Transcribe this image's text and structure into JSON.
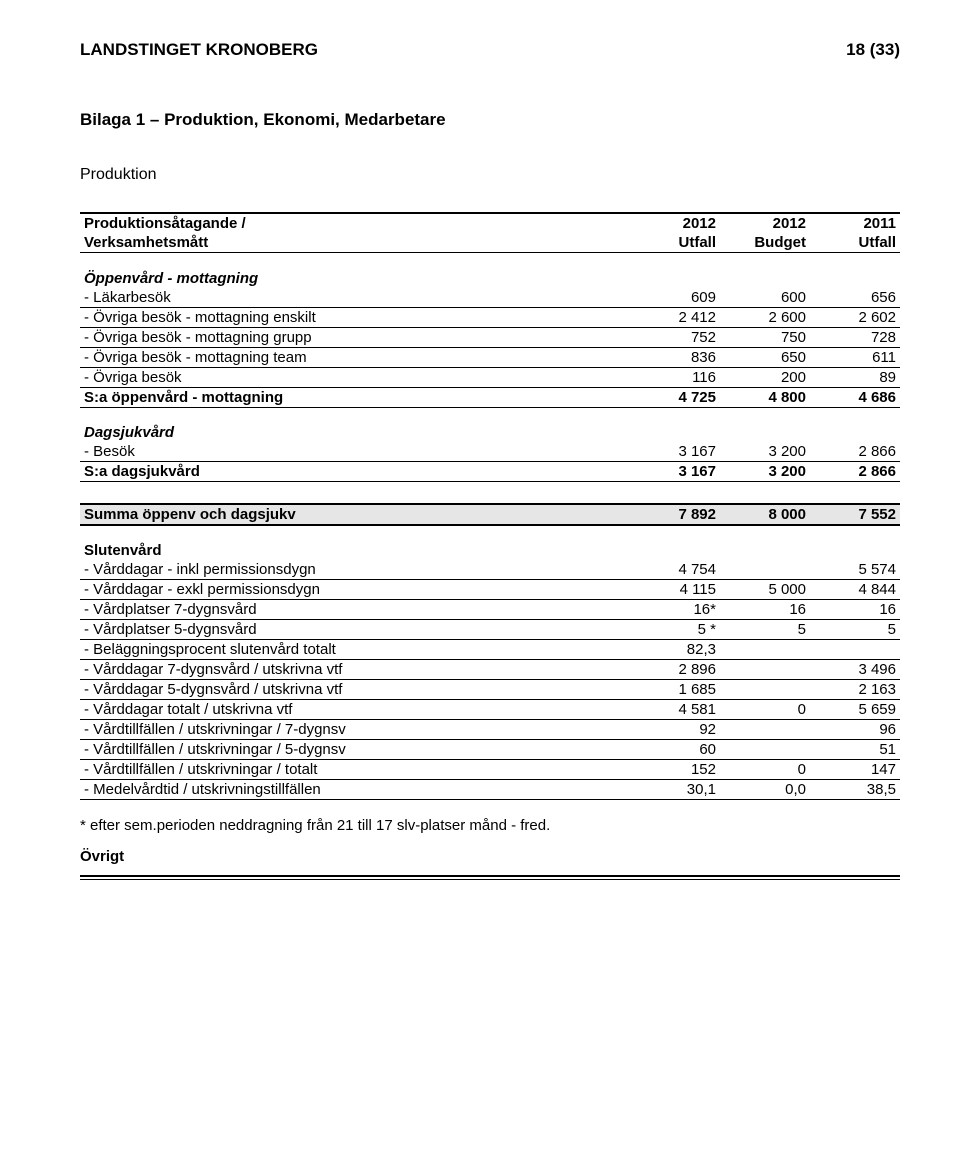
{
  "header": {
    "org": "LANDSTINGET KRONOBERG",
    "page": "18 (33)"
  },
  "title": "Bilaga 1 – Produktion, Ekonomi, Medarbetare",
  "subtitle": "Produktion",
  "table_head": {
    "row1": {
      "label": "Produktionsåtagande /",
      "c1": "2012",
      "c2": "2012",
      "c3": "2011"
    },
    "row2": {
      "label": "Verksamhetsmått",
      "c1": "Utfall",
      "c2": "Budget",
      "c3": "Utfall"
    }
  },
  "groups": [
    {
      "heading": "Öppenvård - mottagning",
      "heading_style": "bold-italic",
      "rows": [
        {
          "label": " - Läkarbesök",
          "c1": "609",
          "c2": "600",
          "c3": "656",
          "border": "thin"
        },
        {
          "label": " - Övriga besök - mottagning enskilt",
          "c1": "2 412",
          "c2": "2 600",
          "c3": "2 602",
          "border": "thin"
        },
        {
          "label": " - Övriga besök - mottagning grupp",
          "c1": "752",
          "c2": "750",
          "c3": "728",
          "border": "thin"
        },
        {
          "label": " - Övriga besök - mottagning team",
          "c1": "836",
          "c2": "650",
          "c3": "611",
          "border": "thin"
        },
        {
          "label": " - Övriga besök",
          "c1": "116",
          "c2": "200",
          "c3": "89",
          "border": "thin"
        },
        {
          "label": "S:a öppenvård - mottagning",
          "c1": "4 725",
          "c2": "4 800",
          "c3": "4 686",
          "bold": true,
          "border": "thin"
        }
      ]
    },
    {
      "heading": "Dagsjukvård",
      "heading_style": "bold-italic",
      "rows": [
        {
          "label": " - Besök",
          "c1": "3 167",
          "c2": "3 200",
          "c3": "2 866",
          "border": "thin"
        },
        {
          "label": "S:a dagsjukvård",
          "c1": "3 167",
          "c2": "3 200",
          "c3": "2 866",
          "bold": true,
          "border": "thin"
        }
      ]
    },
    {
      "summary": {
        "label": "Summa öppenv och dagsjukv",
        "c1": "7 892",
        "c2": "8 000",
        "c3": "7 552"
      }
    },
    {
      "heading": "Slutenvård",
      "heading_style": "bold",
      "rows": [
        {
          "label": " - Vårddagar - inkl permissionsdygn",
          "c1": "4 754",
          "c2": "",
          "c3": "5 574",
          "border": "thin"
        },
        {
          "label": " - Vårddagar - exkl permissionsdygn",
          "c1": "4 115",
          "c2": "5 000",
          "c3": "4 844",
          "border": "thin"
        },
        {
          "label": " - Vårdplatser 7-dygnsvård",
          "c1": "16*",
          "c2": "16",
          "c3": "16",
          "border": "thin"
        },
        {
          "label": " - Vårdplatser 5-dygnsvård",
          "c1": "5 *",
          "c2": "5",
          "c3": "5",
          "border": "thin"
        },
        {
          "label": " - Beläggningsprocent slutenvård totalt",
          "c1": "82,3",
          "c2": "",
          "c3": "",
          "border": "thin"
        },
        {
          "label": " - Vårddagar 7-dygnsvård / utskrivna vtf",
          "c1": "2 896",
          "c2": "",
          "c3": "3 496",
          "border": "thin"
        },
        {
          "label": " - Vårddagar 5-dygnsvård / utskrivna vtf",
          "c1": "1 685",
          "c2": "",
          "c3": "2 163",
          "border": "thin"
        },
        {
          "label": " - Vårddagar totalt / utskrivna vtf",
          "c1": "4 581",
          "c2": "0",
          "c3": "5 659",
          "border": "thin"
        },
        {
          "label": " - Vårdtillfällen / utskrivningar / 7-dygnsv",
          "c1": "92",
          "c2": "",
          "c3": "96",
          "border": "thin"
        },
        {
          "label": " - Vårdtillfällen / utskrivningar / 5-dygnsv",
          "c1": "60",
          "c2": "",
          "c3": "51",
          "border": "thin"
        },
        {
          "label": " - Vårdtillfällen / utskrivningar / totalt",
          "c1": "152",
          "c2": "0",
          "c3": "147",
          "border": "thin"
        },
        {
          "label": " - Medelvårdtid / utskrivningstillfällen",
          "c1": "30,1",
          "c2": "0,0",
          "c3": "38,5",
          "border": "thin"
        }
      ]
    }
  ],
  "footnote": "* efter sem.perioden neddragning från 21 till  17 slv-platser månd - fred.",
  "ovrigt": "Övrigt"
}
